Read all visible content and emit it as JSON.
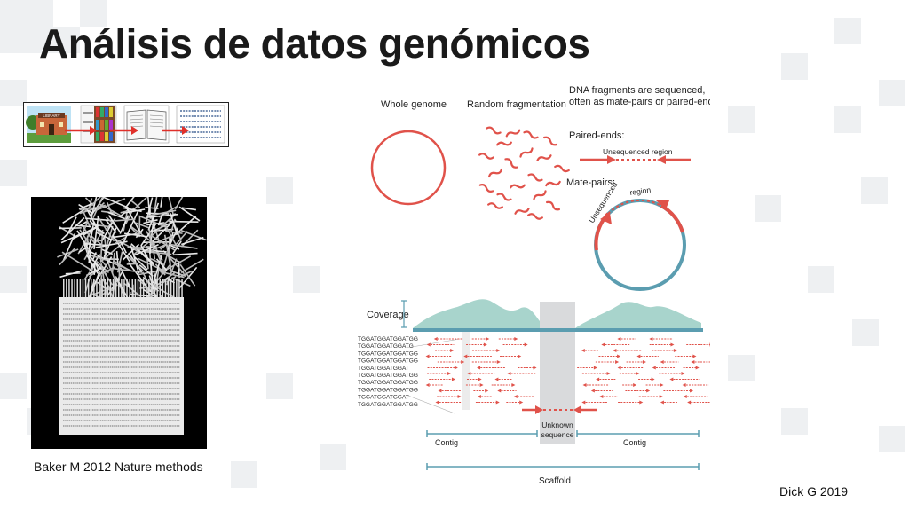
{
  "slide": {
    "title": "Análisis de datos genómicos",
    "left_caption": "Baker M 2012 Nature methods",
    "right_caption": "Dick G 2019"
  },
  "library_strip": {
    "sign_text": "LIBRARY",
    "panels": [
      "library-building-icon",
      "bookshelf-icon",
      "open-book-icon",
      "sequence-text-icon"
    ],
    "accent": "#e0302a"
  },
  "diagram": {
    "whole_genome": "Whole genome",
    "random_fragmentation": "Random fragmentation",
    "sequenced_note_line1": "DNA fragments are sequenced,",
    "sequenced_note_line2": "often as mate-pairs or paired-ends",
    "paired_ends": "Paired-ends:",
    "unsequenced_region": "Unsequenced region",
    "mate_pairs": "Mate-pairs:",
    "mate_unsequenced": "Unsequenced region",
    "coverage": "Coverage",
    "reads": [
      "TGGATGGATGGATGG",
      "TGGATGGATGGATG",
      "TGGATGGATGGATGG",
      "TGGATGGATGGATGG",
      "TGGATGGATGGAT",
      "TGGATGGATGGATGG",
      "TGGATGGATGGATGG",
      "TGGATGGATGGATGG",
      "TGGATGGATGGAT",
      "TGGATGGATGGATGG"
    ],
    "unknown_line1": "Unknown",
    "unknown_line2": "sequence",
    "contig_left": "Contig",
    "contig_right": "Contig",
    "scaffold": "Scaffold",
    "colors": {
      "red": "#e0524a",
      "teal": "#5b9db0",
      "coverage_fill": "#a8d4cc",
      "gap": "#d9dadc"
    }
  }
}
